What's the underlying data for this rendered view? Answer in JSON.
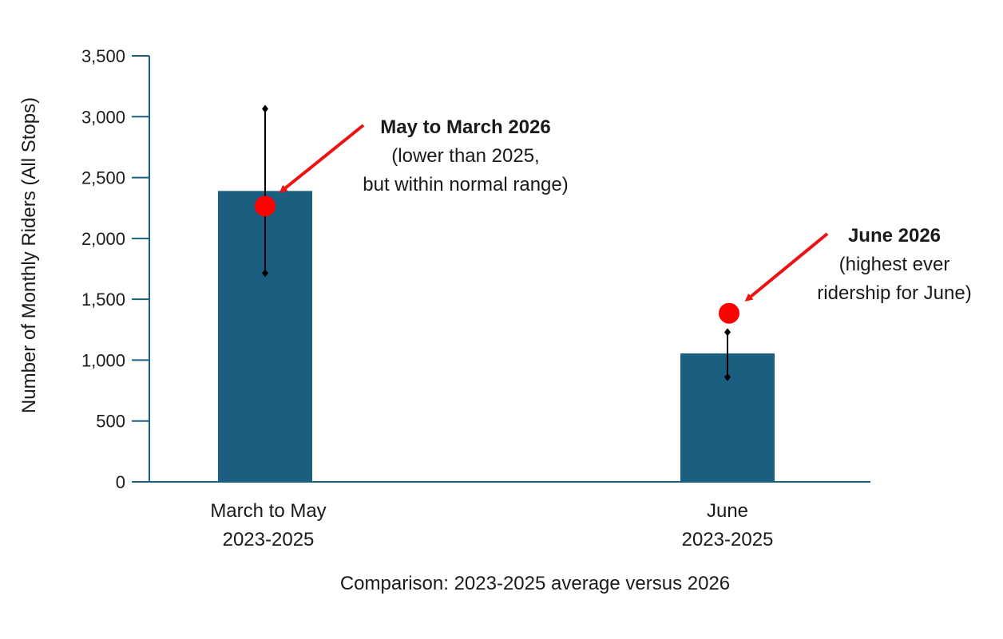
{
  "chart_data": {
    "type": "bar",
    "categories": [
      [
        "March to May",
        "2023-2025"
      ],
      [
        "June",
        "2023-2025"
      ]
    ],
    "values": [
      2390,
      1055
    ],
    "error_bars": [
      {
        "low": 1715,
        "high": 3065
      },
      {
        "low": 860,
        "high": 1230
      }
    ],
    "points_2026": [
      2265,
      1385
    ],
    "xlabel": "Comparison: 2023-2025 average versus 2026",
    "ylabel": "Number of Monthly Riders (All Stops)",
    "ylim": [
      0,
      3500
    ],
    "yticks": [
      0,
      500,
      1000,
      1500,
      2000,
      2500,
      3000,
      3500
    ],
    "ytick_labels": [
      "0",
      "500",
      "1,000",
      "1,500",
      "2,000",
      "2,500",
      "3,000",
      "3,500"
    ],
    "grid": false,
    "annotations": [
      {
        "title": "May to March 2026",
        "lines": [
          "(lower than 2025,",
          "but within normal range)"
        ]
      },
      {
        "title": "June 2026",
        "lines": [
          "(highest ever",
          "ridership for June)"
        ]
      }
    ],
    "colors": {
      "bar": "#1a5f80",
      "axis": "#1a5f80",
      "point": "#ff0000",
      "arrow": "#ee1111",
      "error_bar": "#000000"
    }
  }
}
